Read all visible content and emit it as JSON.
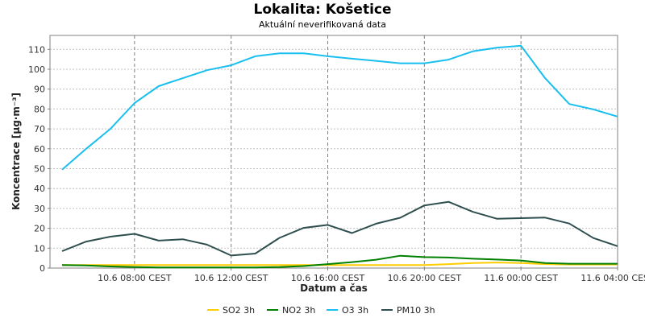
{
  "chart_data": {
    "type": "line",
    "title": "Lokalita: Košetice",
    "subtitle": "Aktuální neverifikovaná data",
    "xlabel": "Datum a čas",
    "ylabel": "Koncentrace [µg·m⁻³]",
    "ylim": [
      0,
      117
    ],
    "yticks": [
      0,
      10,
      20,
      30,
      40,
      50,
      60,
      70,
      80,
      90,
      100,
      110
    ],
    "xlim": [
      4.5,
      28.0
    ],
    "xticks": [
      {
        "x": 8,
        "label": "10.6 08:00 CEST"
      },
      {
        "x": 12,
        "label": "10.6 12:00 CEST"
      },
      {
        "x": 16,
        "label": "10.6 16:00 CEST"
      },
      {
        "x": 20,
        "label": "10.6 20:00 CEST"
      },
      {
        "x": 24,
        "label": "11.6 00:00 CEST"
      },
      {
        "x": 28,
        "label": "11.6 04:00 CEST"
      }
    ],
    "grid": true,
    "legend_position": "bottom",
    "x": [
      5,
      6,
      7,
      8,
      9,
      10,
      11,
      12,
      13,
      14,
      15,
      16,
      17,
      18,
      19,
      20,
      21,
      22,
      23,
      24,
      25,
      26,
      27,
      28
    ],
    "series": [
      {
        "name": "SO2 3h",
        "color": "#ffcc00",
        "values": [
          1.5,
          1.5,
          1.5,
          1.5,
          1.5,
          1.5,
          1.5,
          1.5,
          1.5,
          1.5,
          1.5,
          1.5,
          1.5,
          1.5,
          1.5,
          1.5,
          2.0,
          2.5,
          2.8,
          2.5,
          2.0,
          1.8,
          1.8,
          1.8
        ]
      },
      {
        "name": "NO2 3h",
        "color": "#008000",
        "values": [
          1.5,
          1.3,
          0.8,
          0.5,
          0.3,
          0.3,
          0.3,
          0.3,
          0.3,
          0.5,
          1.0,
          2.0,
          3.0,
          4.2,
          6.2,
          5.5,
          5.3,
          4.7,
          4.3,
          3.8,
          2.5,
          2.2,
          2.2,
          2.2
        ]
      },
      {
        "name": "O3 3h",
        "color": "#19bfef",
        "values": [
          49.5,
          60,
          70,
          83,
          91.5,
          95.5,
          99.5,
          102,
          106.5,
          108,
          108,
          106.5,
          105.3,
          104.2,
          103,
          103,
          104.8,
          109,
          110.8,
          111.8,
          95.5,
          82.5,
          79.8,
          76.2
        ]
      },
      {
        "name": "PM10 3h",
        "color": "#2f4f4f",
        "values": [
          8.5,
          13.3,
          15.8,
          17.2,
          13.8,
          14.5,
          11.8,
          6.3,
          7.3,
          15.2,
          20.2,
          21.7,
          17.6,
          22.3,
          25.3,
          31.5,
          33.3,
          28.3,
          24.8,
          25.1,
          25.4,
          22.4,
          15.1,
          11
        ]
      }
    ]
  }
}
